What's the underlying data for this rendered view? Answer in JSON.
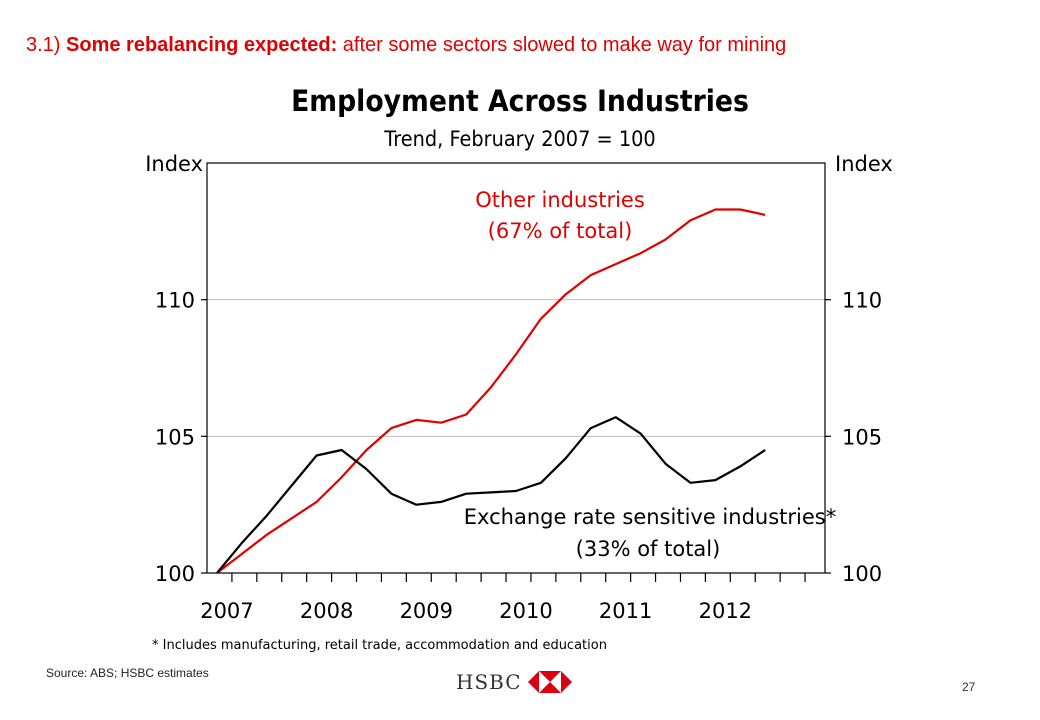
{
  "headline": {
    "prefix": "3.1) ",
    "bold": "Some rebalancing expected:",
    "rest": " after some sectors slowed to make way for mining"
  },
  "chart_data": {
    "type": "line",
    "title": "Employment Across Industries",
    "subtitle": "Trend, February 2007 = 100",
    "ylabel_left": "Index",
    "ylabel_right": "Index",
    "ylim": [
      100,
      115
    ],
    "yticks": [
      100,
      105,
      110
    ],
    "xlim": [
      2007,
      2013.2
    ],
    "xticks": [
      "2007",
      "2008",
      "2009",
      "2010",
      "2011",
      "2012"
    ],
    "series": [
      {
        "name": "Other industries",
        "label_line1": "Other industries",
        "label_line2": "(67% of total)",
        "color": "#e00000",
        "x": [
          2007.1,
          2007.35,
          2007.6,
          2007.85,
          2008.1,
          2008.35,
          2008.6,
          2008.85,
          2009.1,
          2009.35,
          2009.6,
          2009.85,
          2010.1,
          2010.35,
          2010.6,
          2010.85,
          2011.1,
          2011.35,
          2011.6,
          2011.85,
          2012.1,
          2012.35,
          2012.6
        ],
        "values": [
          100.0,
          100.7,
          101.4,
          102.0,
          102.6,
          103.5,
          104.5,
          105.3,
          105.6,
          105.5,
          105.8,
          106.8,
          108.0,
          109.3,
          110.2,
          110.9,
          111.3,
          111.7,
          112.2,
          112.9,
          113.3,
          113.3,
          113.1
        ]
      },
      {
        "name": "Exchange rate sensitive industries*",
        "label_line1": "Exchange rate sensitive industries*",
        "label_line2": "(33% of total)",
        "color": "#000000",
        "x": [
          2007.1,
          2007.35,
          2007.6,
          2007.85,
          2008.1,
          2008.35,
          2008.6,
          2008.85,
          2009.1,
          2009.35,
          2009.6,
          2009.85,
          2010.1,
          2010.35,
          2010.6,
          2010.85,
          2011.1,
          2011.35,
          2011.6,
          2011.85,
          2012.1,
          2012.35,
          2012.6
        ],
        "values": [
          100.0,
          101.1,
          102.1,
          103.2,
          104.3,
          104.5,
          103.8,
          102.9,
          102.5,
          102.6,
          102.9,
          102.95,
          103.0,
          103.3,
          104.2,
          105.3,
          105.7,
          105.1,
          104.0,
          103.3,
          103.4,
          103.9,
          104.5
        ]
      }
    ],
    "grid": "horizontal",
    "footnote": "*  Includes manufacturing, retail trade, accommodation and education"
  },
  "source": "Source: ABS; HSBC estimates",
  "logo": {
    "text": "HSBC",
    "icon": "hsbc-hexagon-icon",
    "color": "#db0011"
  },
  "page_number": "27"
}
